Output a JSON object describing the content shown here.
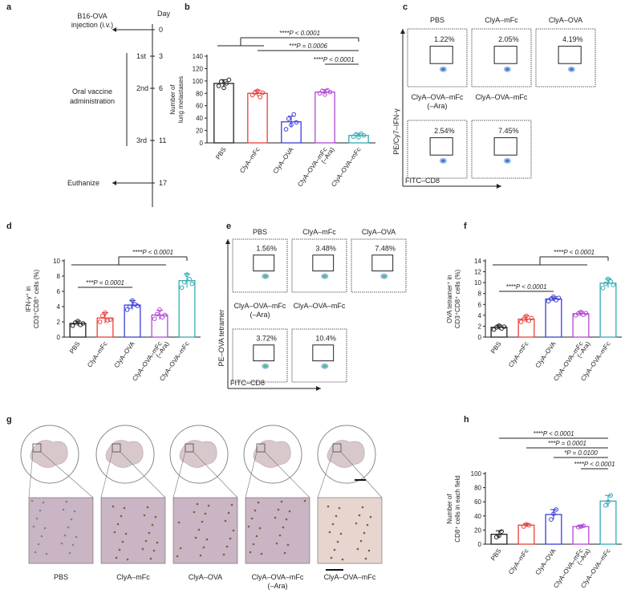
{
  "panel_letters": [
    "a",
    "b",
    "c",
    "d",
    "e",
    "f",
    "g",
    "h"
  ],
  "timeline": {
    "day_label": "Day",
    "injection_label": [
      "B16-OVA",
      "injection (i.v.)"
    ],
    "admin_label": [
      "Oral vaccine",
      "administration"
    ],
    "doses": [
      "1st",
      "2nd",
      "3rd"
    ],
    "days": [
      "0",
      "3",
      "6",
      "11",
      "17"
    ],
    "euthanize_label": "Euthanize"
  },
  "chart_data": [
    {
      "panel": "b",
      "type": "bar",
      "ylabel": [
        "Number of",
        "lung metastases"
      ],
      "ylim": [
        0,
        140
      ],
      "yticks": [
        0,
        20,
        40,
        60,
        80,
        100,
        120,
        140
      ],
      "categories": [
        "PBS",
        "ClyA–mFc",
        "ClyA–OVA",
        "ClyA–OVA–mFc (–Ara)",
        "ClyA–OVA–mFc"
      ],
      "category_lines": [
        [
          "PBS"
        ],
        [
          "ClyA–mFc"
        ],
        [
          "ClyA–OVA"
        ],
        [
          "ClyA–OVA–mFc",
          "(–Ara)"
        ],
        [
          "ClyA–OVA–mFc"
        ]
      ],
      "colors": [
        "#222222",
        "#e8403a",
        "#3b3fd6",
        "#b447d6",
        "#34aab7"
      ],
      "values": [
        96,
        80,
        34,
        82,
        12
      ],
      "errors": [
        6,
        5,
        9,
        4,
        3
      ],
      "points": [
        [
          92,
          99,
          89,
          96,
          102
        ],
        [
          77,
          81,
          84,
          74,
          81
        ],
        [
          22,
          39,
          29,
          46,
          33
        ],
        [
          80,
          84,
          78,
          85,
          82
        ],
        [
          10,
          14,
          9,
          15,
          12
        ]
      ],
      "annotations": [
        {
          "text": "****P < 0.0001",
          "ref": "PBS"
        },
        {
          "text": "***P = 0.0006"
        },
        {
          "text": "****P < 0.0001"
        }
      ]
    },
    {
      "panel": "d",
      "type": "bar",
      "ylabel": [
        "IFN-γ⁺ in",
        "CD3⁺CD8⁺ cells (%)"
      ],
      "ylim": [
        0,
        10
      ],
      "yticks": [
        0,
        2,
        4,
        6,
        8,
        10
      ],
      "categories": [
        "PBS",
        "ClyA–mFc",
        "ClyA–OVA",
        "ClyA–OVA–mFc (–Ara)",
        "ClyA–OVA–mFc"
      ],
      "category_lines": [
        [
          "PBS"
        ],
        [
          "ClyA–mFc"
        ],
        [
          "ClyA–OVA"
        ],
        [
          "ClyA–OVA–mFc",
          "(–Ara)"
        ],
        [
          "ClyA–OVA–mFc"
        ]
      ],
      "colors": [
        "#222222",
        "#e8403a",
        "#3b3fd6",
        "#b447d6",
        "#34aab7"
      ],
      "values": [
        1.8,
        2.5,
        4.2,
        2.9,
        7.4
      ],
      "errors": [
        0.3,
        0.7,
        0.6,
        0.6,
        0.9
      ],
      "points": [
        [
          1.5,
          1.9,
          2.1,
          1.6,
          1.8
        ],
        [
          2.0,
          2.8,
          3.2,
          2.2,
          2.3
        ],
        [
          3.6,
          4.0,
          4.8,
          4.3,
          4.1
        ],
        [
          2.4,
          3.0,
          3.6,
          2.6,
          2.9
        ],
        [
          6.5,
          7.2,
          8.2,
          7.6,
          7.0
        ]
      ],
      "annotations": [
        {
          "text": "****P < 0.0001"
        },
        {
          "text": "***P = 0.0001"
        }
      ]
    },
    {
      "panel": "f",
      "type": "bar",
      "ylabel": [
        "OVA tetramer⁺ in",
        "CD3⁺CD8⁺ cells (%)"
      ],
      "ylim": [
        0,
        14
      ],
      "yticks": [
        0,
        2,
        4,
        6,
        8,
        10,
        12,
        14
      ],
      "categories": [
        "PBS",
        "ClyA–mFc",
        "ClyA–OVA",
        "ClyA–OVA–mFc (–Ara)",
        "ClyA–OVA–mFc"
      ],
      "category_lines": [
        [
          "PBS"
        ],
        [
          "ClyA–mFc"
        ],
        [
          "ClyA–OVA"
        ],
        [
          "ClyA–OVA–mFc",
          "(–Ara)"
        ],
        [
          "ClyA–OVA–mFc"
        ]
      ],
      "colors": [
        "#222222",
        "#e8403a",
        "#3b3fd6",
        "#b447d6",
        "#34aab7"
      ],
      "values": [
        1.8,
        3.3,
        7.0,
        4.3,
        9.9
      ],
      "errors": [
        0.4,
        0.6,
        0.4,
        0.4,
        0.8
      ],
      "points": [
        [
          1.4,
          1.8,
          2.1,
          1.6,
          1.9
        ],
        [
          2.8,
          3.3,
          3.9,
          3.0,
          3.5
        ],
        [
          6.6,
          7.0,
          7.4,
          6.8,
          7.2
        ],
        [
          4.0,
          4.3,
          4.6,
          4.1,
          4.4
        ],
        [
          9.0,
          9.8,
          10.7,
          10.2,
          9.6
        ]
      ],
      "annotations": [
        {
          "text": "****P < 0.0001"
        },
        {
          "text": "****P < 0.0001"
        }
      ]
    },
    {
      "panel": "h",
      "type": "bar",
      "ylabel": [
        "Number of",
        "CD8⁺ cells in each field"
      ],
      "ylim": [
        0,
        100
      ],
      "yticks": [
        0,
        20,
        40,
        60,
        80,
        100
      ],
      "categories": [
        "PBS",
        "ClyA–mFc",
        "ClyA–OVA",
        "ClyA–OVA–mFc (–Ara)",
        "ClyA–OVA–mFc"
      ],
      "category_lines": [
        [
          "PBS"
        ],
        [
          "ClyA–mFc"
        ],
        [
          "ClyA–OVA"
        ],
        [
          "ClyA–OVA–mFc",
          "(–Ara)"
        ],
        [
          "ClyA–OVA–mFc"
        ]
      ],
      "colors": [
        "#222222",
        "#e8403a",
        "#3b3fd6",
        "#b447d6",
        "#34aab7"
      ],
      "values": [
        14,
        27,
        42,
        25,
        61
      ],
      "errors": [
        5,
        2,
        7,
        2,
        8
      ],
      "points": [
        [
          10,
          12,
          18
        ],
        [
          25,
          28,
          27
        ],
        [
          35,
          43,
          49
        ],
        [
          24,
          25,
          26
        ],
        [
          55,
          60,
          69
        ]
      ],
      "annotations": [
        {
          "text": "****P < 0.0001"
        },
        {
          "text": "***P = 0.0001"
        },
        {
          "text": "*P = 0.0100"
        },
        {
          "text": "****P < 0.0001"
        }
      ]
    }
  ],
  "flow_c": {
    "labels": [
      "PBS",
      "ClyA–mFc",
      "ClyA–OVA",
      "ClyA–OVA–mFc\n(–Ara)",
      "ClyA–OVA–mFc"
    ],
    "percents": [
      "1.22%",
      "2.05%",
      "4.19%",
      "2.54%",
      "7.45%"
    ],
    "y_axis": "PE/Cy7–IFN-γ",
    "x_axis": "FITC–CD8"
  },
  "flow_e": {
    "labels": [
      "PBS",
      "ClyA–mFc",
      "ClyA–OVA",
      "ClyA–OVA–mFc\n(–Ara)",
      "ClyA–OVA–mFc"
    ],
    "percents": [
      "1.56%",
      "3.48%",
      "7.48%",
      "3.72%",
      "10.4%"
    ],
    "y_axis": "PE–OVA tetramer",
    "x_axis": "FITC–CD8"
  },
  "histology_g": {
    "labels": [
      "PBS",
      "ClyA–mFc",
      "ClyA–OVA",
      "ClyA–OVA–mFc\n(–Ara)",
      "ClyA–OVA–mFc"
    ]
  },
  "colors": {
    "PBS": "#222222",
    "ClyA-mFc": "#e8403a",
    "ClyA-OVA": "#3b3fd6",
    "ClyA-OVA-mFc-Ara": "#b447d6",
    "ClyA-OVA-mFc": "#34aab7"
  }
}
